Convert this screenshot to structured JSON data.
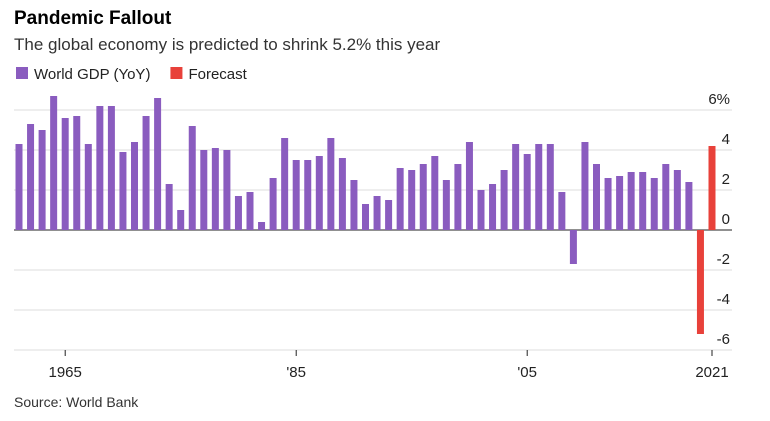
{
  "chart_data": {
    "type": "bar",
    "title": "Pandemic Fallout",
    "subtitle": "The global economy is predicted to shrink 5.2% this year",
    "source": "Source: World Bank",
    "categories": [
      null,
      null,
      null,
      null,
      "1965",
      null,
      null,
      null,
      null,
      null,
      null,
      null,
      null,
      null,
      null,
      null,
      null,
      null,
      null,
      null,
      null,
      null,
      null,
      null,
      "'85",
      null,
      null,
      null,
      null,
      null,
      null,
      null,
      null,
      null,
      null,
      null,
      null,
      null,
      null,
      null,
      null,
      null,
      null,
      null,
      "'05",
      null,
      null,
      null,
      null,
      null,
      null,
      null,
      null,
      null,
      null,
      null,
      null,
      null,
      null,
      null,
      "2021"
    ],
    "series": [
      {
        "name": "World GDP (YoY)",
        "color": "#8a5cbf",
        "values": [
          4.3,
          5.3,
          5.0,
          6.7,
          5.6,
          5.7,
          4.3,
          6.2,
          6.2,
          3.9,
          4.4,
          5.7,
          6.6,
          2.3,
          1.0,
          5.2,
          4.0,
          4.1,
          4.0,
          1.7,
          1.9,
          0.4,
          2.6,
          4.6,
          3.5,
          3.5,
          3.7,
          4.6,
          3.6,
          2.5,
          1.3,
          1.7,
          1.5,
          3.1,
          3.0,
          3.3,
          3.7,
          2.5,
          3.3,
          4.4,
          2.0,
          2.3,
          3.0,
          4.3,
          3.8,
          4.3,
          4.3,
          1.9,
          -1.7,
          4.4,
          3.3,
          2.6,
          2.7,
          2.9,
          2.9,
          2.6,
          3.3,
          3.0,
          2.4,
          null,
          null
        ]
      },
      {
        "name": "Forecast",
        "color": "#e8413a",
        "values": [
          null,
          null,
          null,
          null,
          null,
          null,
          null,
          null,
          null,
          null,
          null,
          null,
          null,
          null,
          null,
          null,
          null,
          null,
          null,
          null,
          null,
          null,
          null,
          null,
          null,
          null,
          null,
          null,
          null,
          null,
          null,
          null,
          null,
          null,
          null,
          null,
          null,
          null,
          null,
          null,
          null,
          null,
          null,
          null,
          null,
          null,
          null,
          null,
          null,
          null,
          null,
          null,
          null,
          null,
          null,
          null,
          null,
          null,
          null,
          -5.2,
          4.2
        ]
      }
    ],
    "ylim": [
      -6,
      7
    ],
    "yticks": [
      {
        "value": 6,
        "label": "6%"
      },
      4,
      2,
      0,
      -2,
      -4,
      -6
    ],
    "grid": true
  }
}
